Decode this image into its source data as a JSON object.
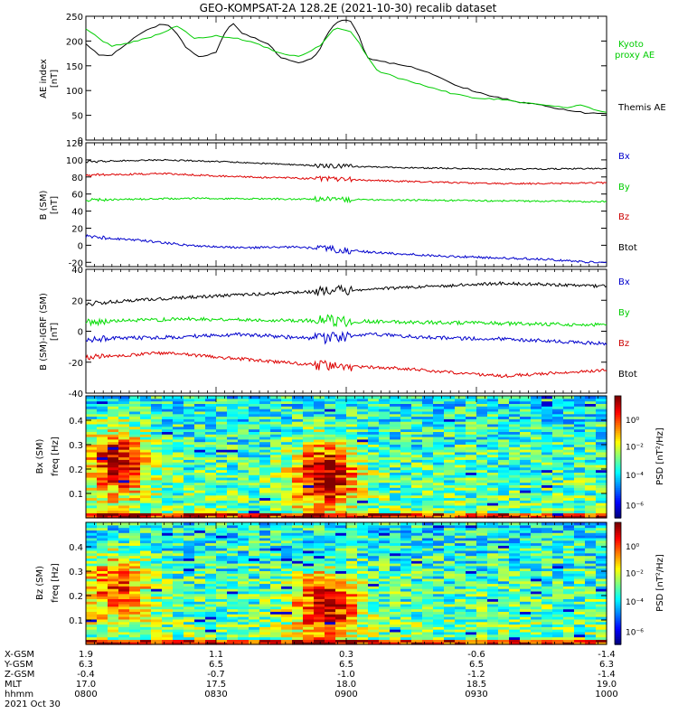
{
  "title": "GEO-KOMPSAT-2A 128.2E (2021-10-30) recalib dataset",
  "colors": {
    "black": "#000000",
    "red": "#dd0000",
    "green": "#00dd00",
    "blue": "#0000cc",
    "kyoto": "#00cc00",
    "label_blue": "#0000cc",
    "label_green": "#00cc00",
    "label_red": "#cc0000"
  },
  "chart_data": [
    {
      "type": "line",
      "id": "ae",
      "ylabel": "AE index",
      "yunit": "[nT]",
      "ylim": [
        0,
        250
      ],
      "yticks": [
        0,
        50,
        100,
        150,
        200,
        250
      ],
      "xlim": [
        0,
        2
      ],
      "series": [
        {
          "name": "Themis AE",
          "color": "#000000",
          "points": [
            [
              0,
              195
            ],
            [
              0.05,
              172
            ],
            [
              0.1,
              172
            ],
            [
              0.15,
              192
            ],
            [
              0.2,
              213
            ],
            [
              0.25,
              225
            ],
            [
              0.28,
              233
            ],
            [
              0.31,
              235
            ],
            [
              0.34,
              222
            ],
            [
              0.38,
              190
            ],
            [
              0.41,
              175
            ],
            [
              0.44,
              166
            ],
            [
              0.47,
              172
            ],
            [
              0.5,
              178
            ],
            [
              0.53,
              212
            ],
            [
              0.56,
              238
            ],
            [
              0.6,
              215
            ],
            [
              0.65,
              205
            ],
            [
              0.7,
              195
            ],
            [
              0.74,
              170
            ],
            [
              0.78,
              160
            ],
            [
              0.82,
              155
            ],
            [
              0.87,
              165
            ],
            [
              0.9,
              185
            ],
            [
              0.93,
              218
            ],
            [
              0.96,
              235
            ],
            [
              0.99,
              245
            ],
            [
              1.02,
              240
            ],
            [
              1.05,
              210
            ],
            [
              1.08,
              165
            ],
            [
              1.12,
              160
            ],
            [
              1.18,
              155
            ],
            [
              1.24,
              150
            ],
            [
              1.3,
              140
            ],
            [
              1.36,
              126
            ],
            [
              1.42,
              110
            ],
            [
              1.5,
              98
            ],
            [
              1.56,
              88
            ],
            [
              1.62,
              82
            ],
            [
              1.68,
              75
            ],
            [
              1.74,
              72
            ],
            [
              1.8,
              65
            ],
            [
              1.86,
              60
            ],
            [
              1.92,
              55
            ],
            [
              2,
              53
            ]
          ]
        },
        {
          "name": "Kyoto proxy AE",
          "color": "#00cc00",
          "points": [
            [
              0,
              225
            ],
            [
              0.05,
              205
            ],
            [
              0.1,
              190
            ],
            [
              0.18,
              198
            ],
            [
              0.26,
              210
            ],
            [
              0.35,
              230
            ],
            [
              0.42,
              205
            ],
            [
              0.5,
              210
            ],
            [
              0.58,
              205
            ],
            [
              0.66,
              195
            ],
            [
              0.74,
              175
            ],
            [
              0.82,
              168
            ],
            [
              0.9,
              190
            ],
            [
              0.96,
              228
            ],
            [
              1.02,
              220
            ],
            [
              1.08,
              170
            ],
            [
              1.12,
              140
            ],
            [
              1.2,
              125
            ],
            [
              1.3,
              110
            ],
            [
              1.4,
              95
            ],
            [
              1.5,
              85
            ],
            [
              1.6,
              82
            ],
            [
              1.7,
              75
            ],
            [
              1.78,
              70
            ],
            [
              1.84,
              65
            ],
            [
              1.9,
              72
            ],
            [
              1.96,
              60
            ],
            [
              2,
              56
            ]
          ]
        }
      ]
    },
    {
      "type": "line",
      "id": "b_sm",
      "ylabel": "B (SM)",
      "yunit": "[nT]",
      "ylim": [
        -25,
        120
      ],
      "yticks": [
        -20,
        0,
        20,
        40,
        60,
        80,
        100,
        120
      ],
      "xlim": [
        0,
        2
      ],
      "series": [
        {
          "name": "Bx",
          "color": "#0000cc",
          "points": [
            [
              0,
              10
            ],
            [
              0.2,
              6
            ],
            [
              0.4,
              0
            ],
            [
              0.6,
              -3
            ],
            [
              0.8,
              -2
            ],
            [
              0.9,
              -4
            ],
            [
              1.0,
              -6
            ],
            [
              1.2,
              -10
            ],
            [
              1.4,
              -13
            ],
            [
              1.6,
              -15
            ],
            [
              1.8,
              -17
            ],
            [
              2,
              -21
            ]
          ],
          "noise": 1.3
        },
        {
          "name": "By",
          "color": "#00dd00",
          "points": [
            [
              0,
              53
            ],
            [
              0.4,
              55
            ],
            [
              0.8,
              54
            ],
            [
              1.2,
              53
            ],
            [
              1.6,
              52
            ],
            [
              2,
              51
            ]
          ],
          "noise": 1.0
        },
        {
          "name": "Bz",
          "color": "#dd0000",
          "points": [
            [
              0,
              82
            ],
            [
              0.3,
              84
            ],
            [
              0.6,
              80
            ],
            [
              0.9,
              78
            ],
            [
              1.2,
              75
            ],
            [
              1.6,
              72
            ],
            [
              2,
              73
            ]
          ],
          "noise": 1.0
        },
        {
          "name": "Btot",
          "color": "#000000",
          "points": [
            [
              0,
              98
            ],
            [
              0.3,
              100
            ],
            [
              0.6,
              97
            ],
            [
              0.9,
              93
            ],
            [
              1.2,
              91
            ],
            [
              1.6,
              89
            ],
            [
              2,
              90
            ]
          ],
          "noise": 0.8
        }
      ]
    },
    {
      "type": "line",
      "id": "b_minus_igrf",
      "ylabel": "B (SM)-IGRF (SM)",
      "yunit": "[nT]",
      "ylim": [
        -40,
        40
      ],
      "yticks": [
        -40,
        -20,
        0,
        20,
        40
      ],
      "xlim": [
        0,
        2
      ],
      "series": [
        {
          "name": "Bx",
          "color": "#0000cc",
          "points": [
            [
              0,
              -5
            ],
            [
              0.3,
              -4
            ],
            [
              0.6,
              -2
            ],
            [
              0.8,
              -4
            ],
            [
              0.9,
              -5
            ],
            [
              1.1,
              -2
            ],
            [
              1.3,
              -4
            ],
            [
              1.6,
              -5
            ],
            [
              2,
              -8
            ]
          ],
          "noise": 1.2
        },
        {
          "name": "By",
          "color": "#00dd00",
          "points": [
            [
              0,
              6
            ],
            [
              0.4,
              8
            ],
            [
              0.8,
              7
            ],
            [
              1.2,
              6
            ],
            [
              1.6,
              5
            ],
            [
              2,
              4
            ]
          ],
          "noise": 1.2
        },
        {
          "name": "Bz",
          "color": "#dd0000",
          "points": [
            [
              0,
              -17
            ],
            [
              0.3,
              -14
            ],
            [
              0.6,
              -18
            ],
            [
              0.9,
              -22
            ],
            [
              1.2,
              -24
            ],
            [
              1.6,
              -29
            ],
            [
              2,
              -25
            ]
          ],
          "noise": 1.0
        },
        {
          "name": "Btot",
          "color": "#000000",
          "points": [
            [
              0,
              18
            ],
            [
              0.4,
              22
            ],
            [
              0.8,
              25
            ],
            [
              1.2,
              28
            ],
            [
              1.6,
              31
            ],
            [
              2,
              29
            ]
          ],
          "noise": 1.0
        }
      ]
    },
    {
      "type": "heatmap",
      "id": "bx_psd",
      "ylabel": "Bx (SM)",
      "ysublabel": "freq [Hz]",
      "ylim": [
        0,
        0.5
      ],
      "yticks": [
        0.1,
        0.2,
        0.3,
        0.4
      ],
      "colorbar_label": "PSD [nT²/Hz]",
      "colorbar_ticks": [
        "10⁰",
        "10⁻²",
        "10⁻⁴",
        "10⁻⁶"
      ],
      "hotspots": [
        [
          0.1,
          0.23,
          0.9
        ],
        [
          0.9,
          0.18,
          1.0
        ]
      ],
      "seed": 17
    },
    {
      "type": "heatmap",
      "id": "bz_psd",
      "ylabel": "Bz (SM)",
      "ysublabel": "freq [Hz]",
      "ylim": [
        0,
        0.5
      ],
      "yticks": [
        0.1,
        0.2,
        0.3,
        0.4
      ],
      "colorbar_label": "PSD [nT²/Hz]",
      "colorbar_ticks": [
        "10⁰",
        "10⁻²",
        "10⁻⁴",
        "10⁻⁶"
      ],
      "hotspots": [
        [
          0.1,
          0.24,
          0.7
        ],
        [
          0.9,
          0.16,
          0.9
        ]
      ],
      "seed": 41
    }
  ],
  "ephemeris": {
    "rows": [
      {
        "label": "X-GSM",
        "values": [
          "1.9",
          "1.1",
          "0.3",
          "-0.6",
          "-1.4"
        ]
      },
      {
        "label": "Y-GSM",
        "values": [
          "6.3",
          "6.5",
          "6.5",
          "6.5",
          "6.3"
        ]
      },
      {
        "label": "Z-GSM",
        "values": [
          "-0.4",
          "-0.7",
          "-1.0",
          "-1.2",
          "-1.4"
        ]
      },
      {
        "label": "MLT",
        "values": [
          "17.0",
          "17.5",
          "18.0",
          "18.5",
          "19.0"
        ]
      },
      {
        "label": "hhmm",
        "values": [
          "0800",
          "0830",
          "0900",
          "0930",
          "1000"
        ]
      }
    ],
    "date": "2021 Oct 30"
  },
  "legend": {
    "ae": [
      "Kyoto",
      "proxy AE",
      "Themis AE"
    ],
    "b": [
      "Bx",
      "By",
      "Bz",
      "Btot"
    ]
  }
}
